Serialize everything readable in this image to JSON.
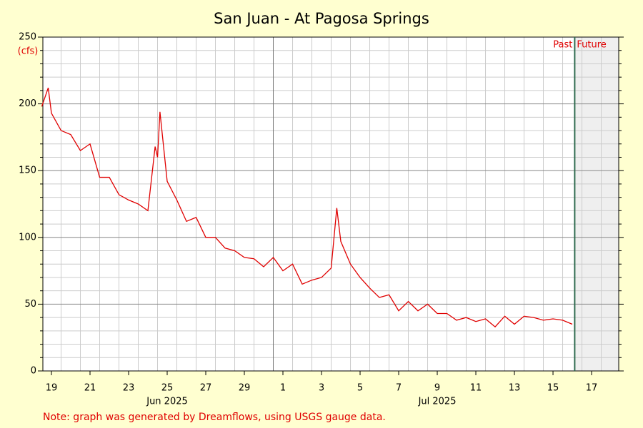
{
  "chart_data": {
    "type": "line",
    "title": "San Juan - At Pagosa Springs",
    "y_label": "(cfs)",
    "note": "Note: graph was generated by Dreamflows, using USGS gauge data.",
    "past_label": "Past",
    "future_label": "Future",
    "now": "2025-07-16T15:00Z",
    "xlim": [
      "2025-06-19T01:20Z",
      "2025-07-18T21:45Z"
    ],
    "ylim": [
      0,
      250
    ],
    "yticks": [
      0,
      50,
      100,
      150,
      200,
      250
    ],
    "yminorticks": [
      10,
      20,
      30,
      40,
      60,
      70,
      80,
      90,
      110,
      120,
      130,
      140,
      160,
      170,
      180,
      190,
      210,
      220,
      230,
      240
    ],
    "xticks": [
      {
        "value": "2025-06-19",
        "label": "19"
      },
      {
        "value": "2025-06-21",
        "label": "21"
      },
      {
        "value": "2025-06-23",
        "label": "23"
      },
      {
        "value": "2025-06-25",
        "label": "25"
      },
      {
        "value": "2025-06-27",
        "label": "27"
      },
      {
        "value": "2025-06-29",
        "label": "29"
      },
      {
        "value": "2025-07-01",
        "label": "1"
      },
      {
        "value": "2025-07-03",
        "label": "3"
      },
      {
        "value": "2025-07-05",
        "label": "5"
      },
      {
        "value": "2025-07-07",
        "label": "7"
      },
      {
        "value": "2025-07-09",
        "label": "9"
      },
      {
        "value": "2025-07-11",
        "label": "11"
      },
      {
        "value": "2025-07-13",
        "label": "13"
      },
      {
        "value": "2025-07-15",
        "label": "15"
      },
      {
        "value": "2025-07-17",
        "label": "17"
      }
    ],
    "xminorticks": [
      "2025-06-20",
      "2025-06-21",
      "2025-06-22",
      "2025-06-23",
      "2025-06-24",
      "2025-06-25",
      "2025-06-26",
      "2025-06-27",
      "2025-06-28",
      "2025-06-29",
      "2025-06-30",
      "2025-07-02",
      "2025-07-03",
      "2025-07-04",
      "2025-07-05",
      "2025-07-06",
      "2025-07-07",
      "2025-07-08",
      "2025-07-09",
      "2025-07-10",
      "2025-07-11",
      "2025-07-12",
      "2025-07-13",
      "2025-07-14",
      "2025-07-15",
      "2025-07-16",
      "2025-07-17",
      "2025-07-18"
    ],
    "xmajorticks": [
      "2025-07-01"
    ],
    "month_labels": [
      {
        "text": "Jun 2025",
        "x": "2025-06-25"
      },
      {
        "text": "Jul 2025",
        "x": "2025-07-09"
      }
    ],
    "grid": true,
    "series": [
      {
        "name": "Flow",
        "color": "#e00000",
        "x": [
          "2025-06-19T00:00Z",
          "2025-06-19T08:00Z",
          "2025-06-19T12:00Z",
          "2025-06-20T00:00Z",
          "2025-06-20T12:00Z",
          "2025-06-21T00:00Z",
          "2025-06-21T12:00Z",
          "2025-06-22T00:00Z",
          "2025-06-22T12:00Z",
          "2025-06-23T00:00Z",
          "2025-06-23T12:00Z",
          "2025-06-24T00:00Z",
          "2025-06-24T12:00Z",
          "2025-06-24T21:00Z",
          "2025-06-25T00:00Z",
          "2025-06-25T03:00Z",
          "2025-06-25T12:00Z",
          "2025-06-26T00:00Z",
          "2025-06-26T12:00Z",
          "2025-06-27T00:00Z",
          "2025-06-27T12:00Z",
          "2025-06-28T00:00Z",
          "2025-06-28T12:00Z",
          "2025-06-29T00:00Z",
          "2025-06-29T12:00Z",
          "2025-06-30T00:00Z",
          "2025-06-30T12:00Z",
          "2025-07-01T00:00Z",
          "2025-07-01T12:00Z",
          "2025-07-02T00:00Z",
          "2025-07-02T12:00Z",
          "2025-07-03T00:00Z",
          "2025-07-03T12:00Z",
          "2025-07-04T00:00Z",
          "2025-07-04T07:00Z",
          "2025-07-04T12:00Z",
          "2025-07-05T00:00Z",
          "2025-07-05T12:00Z",
          "2025-07-06T00:00Z",
          "2025-07-06T12:00Z",
          "2025-07-07T00:00Z",
          "2025-07-07T12:00Z",
          "2025-07-08T00:00Z",
          "2025-07-08T12:00Z",
          "2025-07-09T00:00Z",
          "2025-07-09T12:00Z",
          "2025-07-10T00:00Z",
          "2025-07-10T12:00Z",
          "2025-07-11T00:00Z",
          "2025-07-11T12:00Z",
          "2025-07-12T00:00Z",
          "2025-07-12T12:00Z",
          "2025-07-13T00:00Z",
          "2025-07-13T12:00Z",
          "2025-07-14T00:00Z",
          "2025-07-14T12:00Z",
          "2025-07-15T00:00Z",
          "2025-07-15T12:00Z",
          "2025-07-16T00:00Z",
          "2025-07-16T12:00Z"
        ],
        "values": [
          198,
          212,
          193,
          180,
          177,
          165,
          170,
          145,
          145,
          132,
          128,
          125,
          120,
          168,
          160,
          194,
          142,
          128,
          112,
          115,
          100,
          100,
          92,
          90,
          85,
          84,
          78,
          85,
          75,
          80,
          65,
          68,
          70,
          77,
          122,
          97,
          80,
          70,
          62,
          55,
          57,
          45,
          52,
          45,
          50,
          43,
          43,
          38,
          40,
          37,
          39,
          33,
          41,
          35,
          41,
          40,
          38,
          39,
          38,
          35
        ]
      }
    ]
  }
}
